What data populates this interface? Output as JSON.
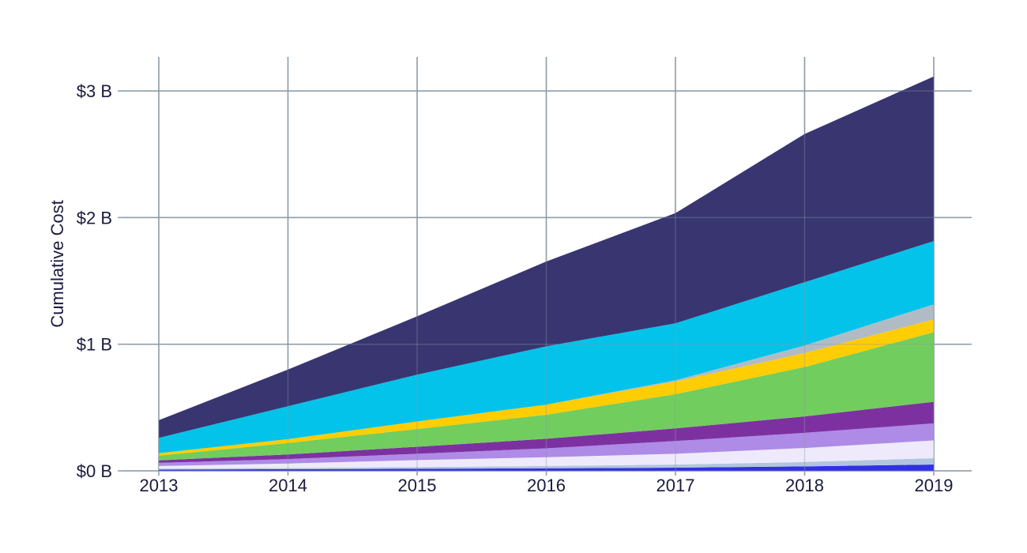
{
  "chart_data": {
    "type": "area",
    "stacked": true,
    "title": "",
    "xlabel": "",
    "ylabel": "Cumulative Cost",
    "x": [
      2013,
      2014,
      2015,
      2016,
      2017,
      2018,
      2019
    ],
    "x_tick_labels": [
      "2013",
      "2014",
      "2015",
      "2016",
      "2017",
      "2018",
      "2019"
    ],
    "y_ticks": [
      0,
      1,
      2,
      3
    ],
    "y_tick_labels": [
      "$0 B",
      "$1 B",
      "$2 B",
      "$3 B"
    ],
    "ylim": [
      0,
      3.3
    ],
    "grid": true,
    "legend": "none",
    "series": [
      {
        "color": "#2e2ee6",
        "values": [
          0.01,
          0.013,
          0.016,
          0.02,
          0.025,
          0.035,
          0.05
        ]
      },
      {
        "color": "#b0c4de",
        "values": [
          0.008,
          0.01,
          0.014,
          0.018,
          0.025,
          0.035,
          0.05
        ]
      },
      {
        "color": "#eeeafc",
        "values": [
          0.02,
          0.035,
          0.055,
          0.07,
          0.085,
          0.11,
          0.14
        ]
      },
      {
        "color": "#ad8ae6",
        "values": [
          0.025,
          0.035,
          0.05,
          0.07,
          0.1,
          0.12,
          0.135
        ]
      },
      {
        "color": "#7b2fa0",
        "values": [
          0.02,
          0.037,
          0.055,
          0.075,
          0.1,
          0.13,
          0.17
        ]
      },
      {
        "color": "#6fcc5c",
        "values": [
          0.037,
          0.09,
          0.14,
          0.19,
          0.27,
          0.39,
          0.55
        ]
      },
      {
        "color": "#ffcc00",
        "values": [
          0.02,
          0.03,
          0.06,
          0.08,
          0.1,
          0.11,
          0.1
        ]
      },
      {
        "color": "#b0bac4",
        "values": [
          0.0,
          0.0,
          0.0,
          0.0,
          0.01,
          0.06,
          0.12
        ]
      },
      {
        "color": "#00c2ea",
        "values": [
          0.12,
          0.26,
          0.37,
          0.46,
          0.45,
          0.5,
          0.5
        ]
      },
      {
        "color": "#36336e",
        "values": [
          0.14,
          0.29,
          0.46,
          0.67,
          0.87,
          1.17,
          1.3
        ]
      }
    ]
  }
}
